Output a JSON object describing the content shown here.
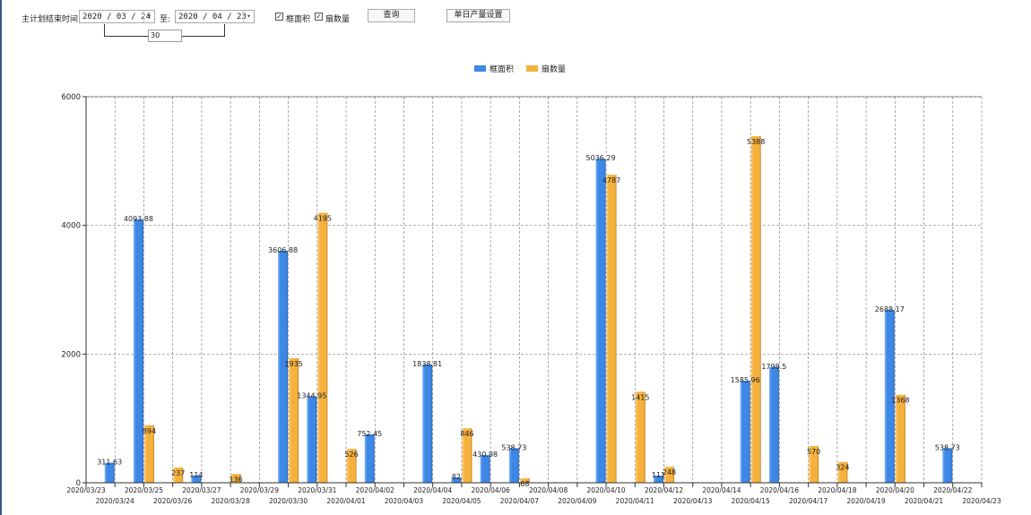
{
  "toolbar": {
    "date_label": "主计划结束时间:",
    "start_date": "2020 / 03 / 24",
    "to_label": "至:",
    "end_date": "2020 / 04 / 23",
    "day_span": "30",
    "checkbox_area": {
      "label": "框面积",
      "checked": true
    },
    "checkbox_count": {
      "label": "扇数量",
      "checked": true
    },
    "query_button": "查询",
    "daily_output_button": "单日产量设置",
    "dropdown_icon": "chevron-down-icon",
    "check_icon": "check-icon"
  },
  "chart_data": {
    "type": "bar",
    "legend_position": "top-center",
    "grid": true,
    "ylim": [
      0,
      6000
    ],
    "yticks": [
      0,
      2000,
      4000,
      6000
    ],
    "categories": [
      "2020/03/23",
      "2020/03/24",
      "2020/03/25",
      "2020/03/26",
      "2020/03/27",
      "2020/03/28",
      "2020/03/29",
      "2020/03/30",
      "2020/03/31",
      "2020/04/01",
      "2020/04/02",
      "2020/04/03",
      "2020/04/04",
      "2020/04/05",
      "2020/04/06",
      "2020/04/07",
      "2020/04/08",
      "2020/04/09",
      "2020/04/10",
      "2020/04/11",
      "2020/04/12",
      "2020/04/13",
      "2020/04/14",
      "2020/04/15",
      "2020/04/16",
      "2020/04/17",
      "2020/04/18",
      "2020/04/19",
      "2020/04/20",
      "2020/04/21",
      "2020/04/22",
      "2020/04/23"
    ],
    "series": [
      {
        "name": "框面积",
        "color": "#3d87e6",
        "values": [
          null,
          311.63,
          4093.88,
          null,
          114,
          null,
          null,
          3606.88,
          1344.95,
          null,
          752.45,
          null,
          1838.81,
          82,
          430.98,
          538.73,
          null,
          null,
          5036.29,
          null,
          111,
          null,
          null,
          1585.96,
          1798.5,
          null,
          null,
          null,
          2688.17,
          null,
          538.73,
          null
        ]
      },
      {
        "name": "扇数量",
        "color": "#f6b13d",
        "values": [
          null,
          null,
          894,
          237,
          null,
          136,
          null,
          1935,
          4195,
          526,
          null,
          null,
          null,
          846,
          null,
          68,
          null,
          null,
          4787,
          1415,
          248,
          null,
          null,
          5388,
          null,
          570,
          324,
          null,
          1368,
          null,
          null,
          null
        ]
      }
    ]
  }
}
